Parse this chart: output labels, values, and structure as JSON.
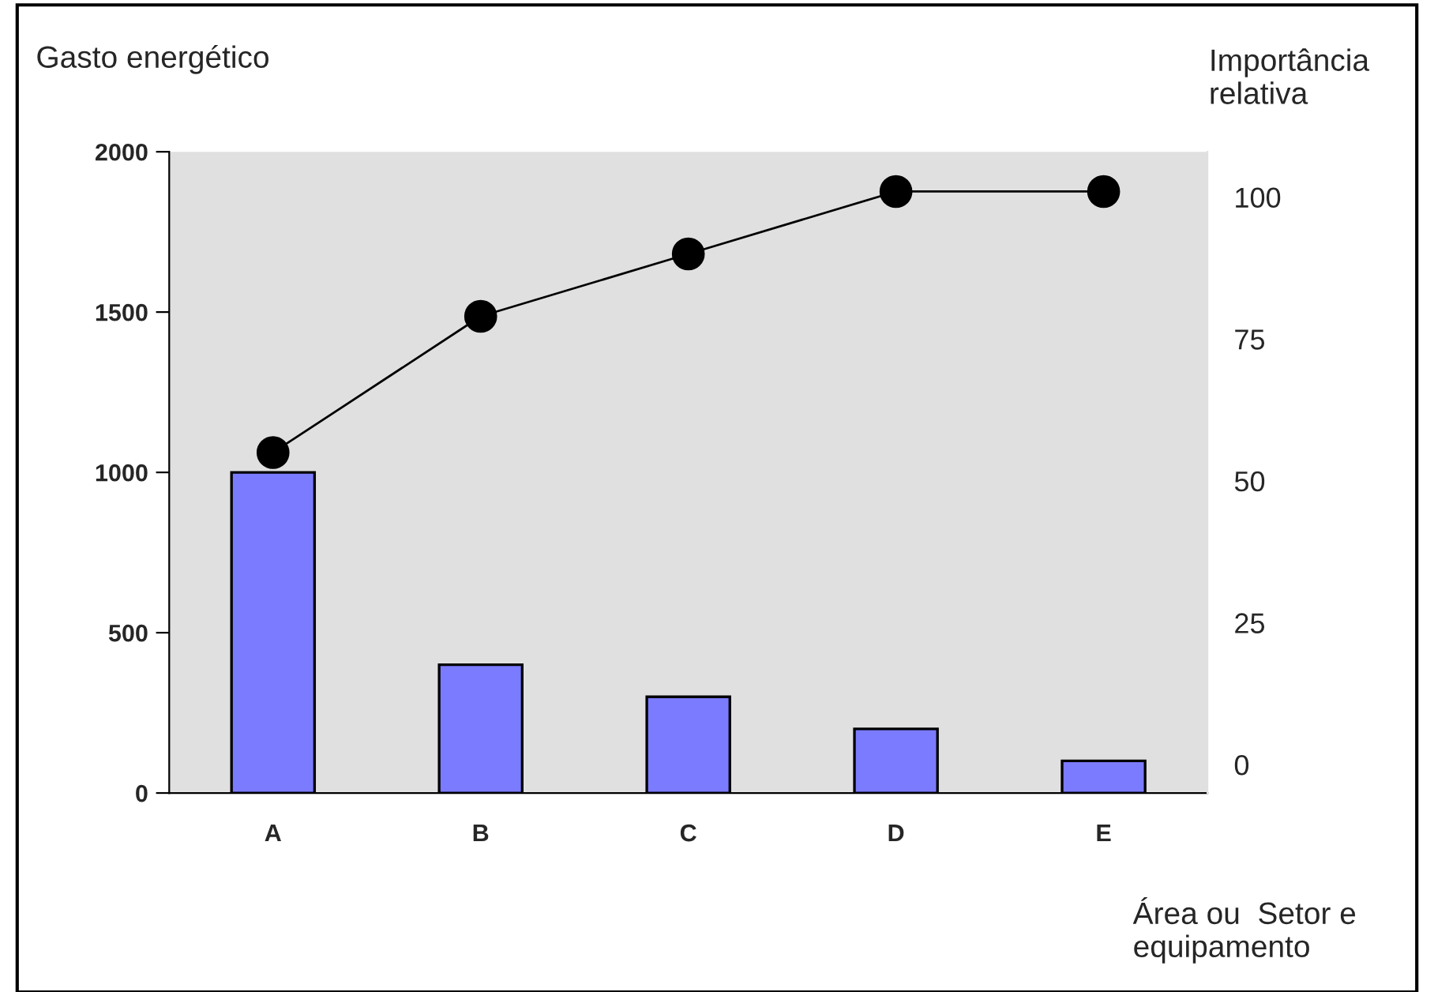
{
  "chart_data": {
    "type": "bar",
    "ylabel": "Gasto energético",
    "y2label": "Importância\nrelativa",
    "xlabel": "Área ou  Setor e\nequipamento",
    "categories": [
      "A",
      "B",
      "C",
      "D",
      "E"
    ],
    "series": [
      {
        "color": "#7b7bff",
        "values": [
          1000,
          400,
          300,
          200,
          100
        ]
      },
      {
        "type": "line",
        "axis": "y2",
        "color": "#000000",
        "values": [
          55,
          79,
          90,
          101,
          101
        ]
      }
    ],
    "ylim": [
      0,
      2000
    ],
    "yticks": [
      0,
      500,
      1000,
      1500,
      2000
    ],
    "y2lim": [
      -5,
      108
    ],
    "y2ticks": [
      0,
      25,
      50,
      75,
      100
    ],
    "marker": "circle",
    "line_style": "solid",
    "grid": false,
    "legend": false
  }
}
